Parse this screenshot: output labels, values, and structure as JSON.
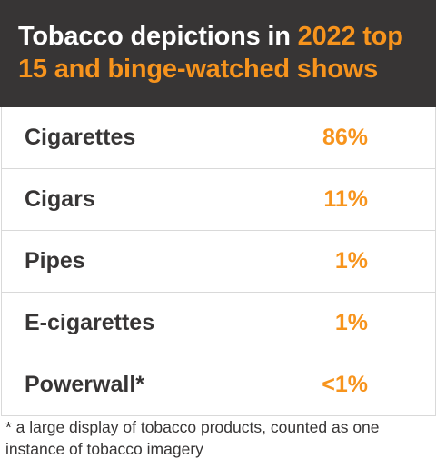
{
  "header": {
    "title_part1": "Tobacco depictions in ",
    "title_highlight": "2022 top 15 and binge-watched shows"
  },
  "rows": [
    {
      "label": "Cigarettes",
      "value": "86%"
    },
    {
      "label": "Cigars",
      "value": "11%"
    },
    {
      "label": "Pipes",
      "value": "1%"
    },
    {
      "label": "E-cigarettes",
      "value": "1%"
    },
    {
      "label": "Powerwall*",
      "value": "<1%"
    }
  ],
  "footnote": "* a large display of tobacco products, counted as one instance of tobacco imagery",
  "colors": {
    "header_bg": "#373535",
    "accent": "#f7941d",
    "text": "#373535",
    "border": "#d9d9d9"
  }
}
